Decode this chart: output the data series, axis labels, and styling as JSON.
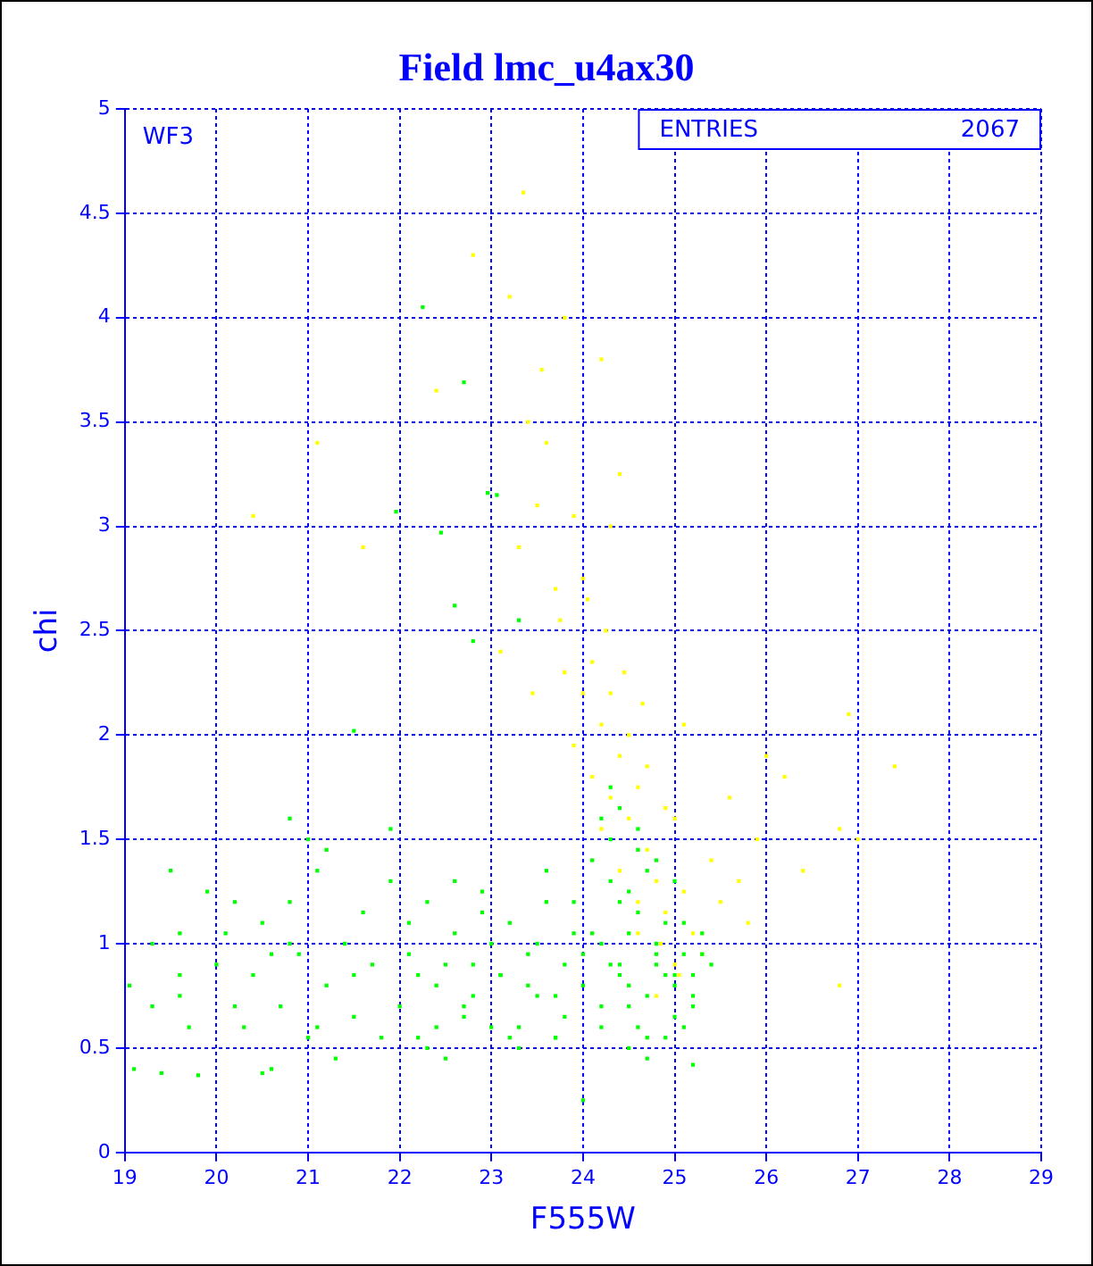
{
  "chart_data": {
    "type": "scatter",
    "title": "Field lmc_u4ax30",
    "xlabel": "F555W",
    "ylabel": "chi",
    "xlim": [
      19,
      29
    ],
    "ylim": [
      0,
      5
    ],
    "xticks": [
      19,
      20,
      21,
      22,
      23,
      24,
      25,
      26,
      27,
      28,
      29
    ],
    "yticks": [
      0,
      0.5,
      1,
      1.5,
      2,
      2.5,
      3,
      3.5,
      4,
      4.5,
      5
    ],
    "grid": true,
    "legend": false,
    "marker": "square",
    "annotations": [
      "WF3",
      "ENTRIES",
      "2067"
    ],
    "series": [
      {
        "color": "#00ff00",
        "x": [
          19.05,
          19.1,
          19.3,
          19.4,
          19.5,
          19.6,
          19.7,
          19.8,
          19.6,
          19.9,
          20.0,
          20.2,
          20.3,
          20.4,
          20.5,
          20.6,
          20.7,
          20.8,
          20.9,
          21.0,
          21.1,
          21.2,
          21.3,
          21.4,
          21.5,
          21.6,
          21.7,
          21.8,
          21.9,
          20.2,
          20.5,
          20.8,
          21.1,
          21.5,
          21.2,
          20.1,
          19.3,
          19.6,
          20.6,
          21.0,
          22.0,
          22.1,
          22.2,
          22.3,
          22.4,
          22.5,
          22.6,
          22.7,
          22.8,
          22.9,
          23.0,
          23.1,
          23.2,
          23.3,
          23.4,
          23.5,
          23.6,
          23.7,
          23.8,
          23.9,
          22.2,
          22.4,
          22.6,
          22.8,
          23.0,
          23.2,
          23.4,
          23.6,
          23.8,
          24.0,
          22.1,
          22.3,
          22.5,
          22.7,
          22.9,
          23.1,
          23.3,
          23.5,
          23.7,
          23.9,
          24.0,
          24.1,
          24.2,
          24.3,
          24.4,
          24.5,
          24.6,
          24.7,
          24.8,
          24.9,
          25.0,
          25.1,
          25.2,
          25.3,
          24.1,
          24.2,
          24.3,
          24.4,
          24.5,
          24.6,
          24.7,
          24.8,
          24.9,
          25.0,
          25.1,
          25.2,
          25.3,
          25.4,
          24.2,
          24.4,
          24.6,
          24.8,
          25.0,
          25.2,
          24.3,
          24.5,
          24.7,
          24.9,
          25.1,
          24.4,
          24.6,
          24.8,
          24.5,
          24.7,
          24.2,
          24.3,
          24.5,
          24.8,
          25.0,
          22.25,
          22.7,
          22.96,
          23.06,
          21.96,
          22.45,
          22.6,
          23.3,
          22.8,
          21.5,
          20.8,
          21.9,
          24.0,
          23.7,
          25.2
        ],
        "values": [
          0.8,
          0.4,
          0.7,
          0.38,
          1.35,
          0.85,
          0.6,
          0.37,
          1.05,
          1.25,
          0.9,
          1.2,
          0.6,
          0.85,
          1.1,
          0.4,
          0.7,
          1.2,
          0.95,
          0.55,
          1.35,
          0.8,
          0.45,
          1.0,
          0.65,
          1.15,
          0.9,
          0.55,
          1.3,
          0.7,
          0.38,
          1.0,
          0.6,
          0.85,
          1.45,
          1.05,
          1.0,
          0.75,
          0.95,
          1.5,
          0.7,
          0.95,
          0.55,
          1.2,
          0.8,
          0.45,
          1.05,
          0.65,
          0.9,
          1.25,
          0.6,
          0.85,
          1.1,
          0.5,
          0.95,
          0.75,
          1.2,
          0.55,
          0.9,
          1.05,
          0.85,
          0.6,
          1.3,
          0.75,
          1.0,
          0.55,
          0.8,
          1.35,
          0.65,
          0.95,
          1.1,
          0.5,
          0.9,
          0.7,
          1.15,
          0.85,
          0.6,
          1.0,
          0.75,
          1.2,
          0.8,
          1.05,
          0.6,
          1.3,
          0.9,
          0.7,
          1.15,
          0.55,
          1.0,
          0.85,
          0.65,
          1.1,
          0.75,
          0.95,
          1.4,
          0.7,
          1.5,
          0.85,
          1.25,
          0.6,
          1.35,
          0.9,
          1.1,
          0.8,
          0.95,
          0.7,
          1.05,
          0.9,
          1.6,
          1.2,
          1.45,
          1.0,
          1.3,
          0.85,
          1.75,
          0.5,
          0.45,
          0.55,
          0.6,
          1.65,
          1.55,
          1.4,
          0.8,
          0.75,
          1.0,
          0.9,
          1.05,
          0.95,
          0.85,
          4.05,
          3.69,
          3.16,
          3.15,
          3.07,
          2.97,
          2.62,
          2.55,
          2.45,
          2.02,
          1.6,
          1.55,
          0.25,
          0.55,
          0.42
        ]
      },
      {
        "color": "#ffff00",
        "x": [
          23.1,
          23.3,
          23.5,
          23.6,
          23.7,
          23.8,
          23.9,
          24.0,
          24.1,
          24.2,
          24.3,
          24.4,
          24.5,
          24.6,
          24.7,
          24.8,
          24.9,
          25.0,
          25.1,
          25.2,
          25.3,
          25.4,
          25.5,
          25.6,
          25.7,
          25.8,
          25.9,
          26.0,
          26.2,
          26.4,
          26.8,
          26.9,
          27.4,
          24.1,
          24.3,
          24.5,
          24.7,
          24.9,
          25.1,
          24.2,
          24.4,
          24.6,
          24.85,
          25.05,
          24.05,
          24.25,
          24.45,
          24.65,
          23.4,
          23.9,
          24.2,
          23.2,
          23.55,
          23.35,
          23.8,
          24.3,
          24.4,
          23.75,
          23.45,
          24.0,
          20.4,
          21.1,
          21.6,
          22.4,
          22.8,
          25.0,
          24.8,
          24.6,
          26.8,
          27.0
        ],
        "values": [
          2.4,
          2.9,
          3.1,
          3.4,
          2.7,
          2.3,
          1.95,
          2.2,
          1.8,
          2.05,
          1.7,
          1.9,
          1.6,
          1.75,
          1.45,
          1.3,
          1.15,
          1.6,
          1.25,
          1.05,
          0.95,
          1.4,
          1.2,
          1.7,
          1.3,
          1.1,
          1.5,
          1.9,
          1.8,
          1.35,
          1.55,
          2.1,
          1.85,
          2.35,
          2.2,
          2.0,
          1.85,
          1.65,
          2.05,
          1.55,
          1.35,
          1.2,
          1.0,
          0.85,
          2.65,
          2.5,
          2.3,
          2.15,
          3.5,
          3.05,
          3.8,
          4.1,
          3.75,
          4.6,
          4.0,
          3.0,
          3.25,
          2.55,
          2.2,
          2.75,
          3.05,
          3.4,
          2.9,
          3.65,
          4.3,
          0.9,
          0.75,
          1.05,
          0.8,
          1.5
        ]
      }
    ]
  }
}
